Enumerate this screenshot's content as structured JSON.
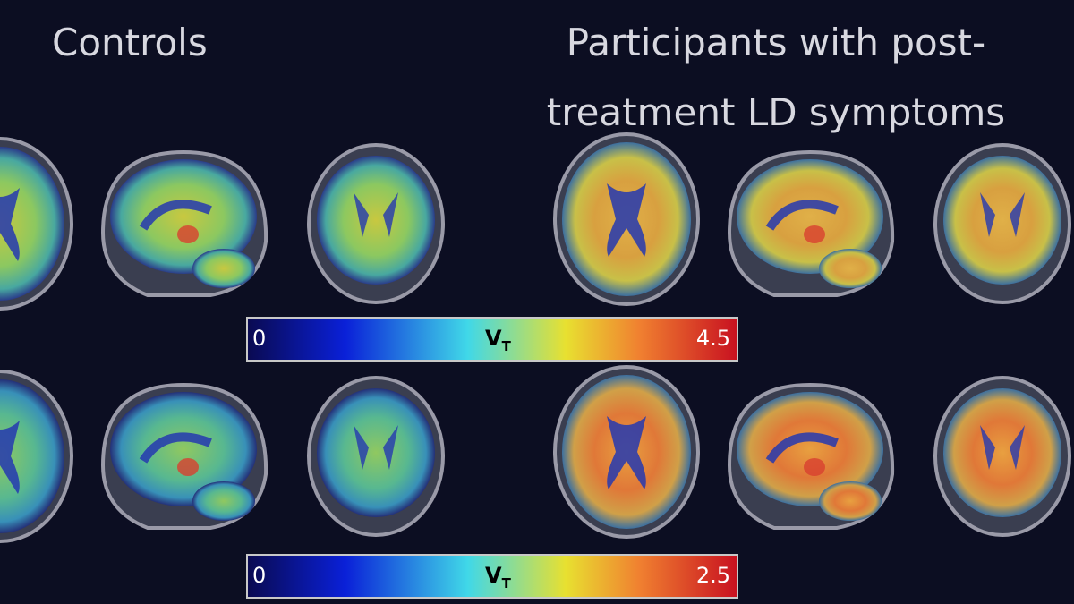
{
  "headings": {
    "controls": "Controls",
    "participants": [
      "Participants with post-",
      "treatment LD symptoms"
    ]
  },
  "colorbars": [
    {
      "min": 0,
      "max": 4.5,
      "label": "V",
      "subscript": "T"
    },
    {
      "min": 0,
      "max": 2.5,
      "label": "V",
      "subscript": "T"
    }
  ]
}
